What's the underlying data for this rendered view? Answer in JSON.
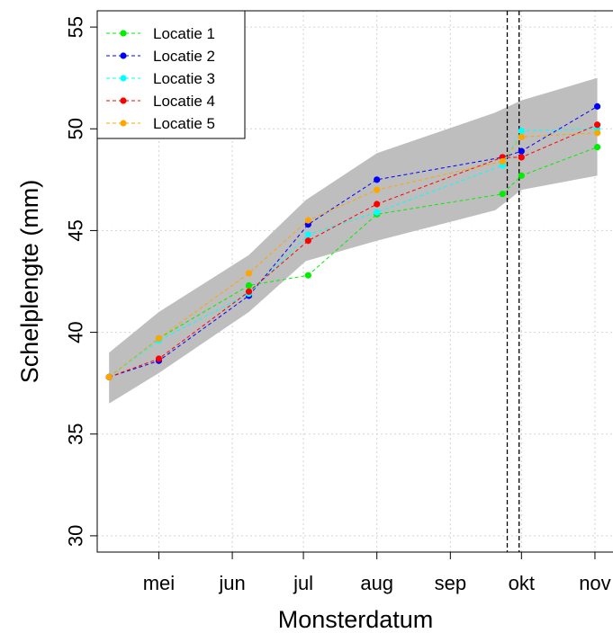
{
  "chart_data": {
    "type": "line",
    "xlabel": "Monsterdatum",
    "ylabel": "Schelplengte (mm)",
    "ylim": [
      29.2,
      55.8
    ],
    "xlim": [
      "2017-04-05",
      "2017-11-09"
    ],
    "y_ticks": [
      30,
      35,
      40,
      45,
      50,
      55
    ],
    "x_ticks": [
      {
        "label": "mei",
        "date": "2017-05-01"
      },
      {
        "label": "jun",
        "date": "2017-06-01"
      },
      {
        "label": "jul",
        "date": "2017-07-01"
      },
      {
        "label": "aug",
        "date": "2017-08-01"
      },
      {
        "label": "sep",
        "date": "2017-09-01"
      },
      {
        "label": "okt",
        "date": "2017-10-01"
      },
      {
        "label": "nov",
        "date": "2017-11-01"
      }
    ],
    "grid": true,
    "legend_position": "top-left",
    "vertical_reference_lines": [
      "2017-09-25",
      "2017-09-30"
    ],
    "band": {
      "color": "#bebebe",
      "x": [
        "2017-04-10",
        "2017-05-01",
        "2017-06-08",
        "2017-07-02",
        "2017-08-01",
        "2017-09-20",
        "2017-10-01",
        "2017-11-02"
      ],
      "upper": [
        39.0,
        41.0,
        43.8,
        46.5,
        48.8,
        50.8,
        51.4,
        52.5
      ],
      "lower": [
        36.5,
        38.0,
        41.0,
        43.5,
        44.5,
        46.0,
        47.0,
        47.7
      ]
    },
    "series": [
      {
        "name": "Locatie 1",
        "color": "#00ee00",
        "x": [
          "2017-04-10",
          "2017-05-01",
          "2017-06-08",
          "2017-07-03",
          "2017-08-01",
          "2017-09-23",
          "2017-10-01",
          "2017-11-02"
        ],
        "values": [
          37.8,
          39.7,
          42.3,
          42.8,
          45.8,
          46.8,
          47.7,
          49.1
        ]
      },
      {
        "name": "Locatie 2",
        "color": "#0000ff",
        "x": [
          "2017-04-10",
          "2017-05-01",
          "2017-06-08",
          "2017-07-03",
          "2017-08-01",
          "2017-09-23",
          "2017-10-01",
          "2017-11-02"
        ],
        "values": [
          37.8,
          38.6,
          41.8,
          45.3,
          47.5,
          48.6,
          48.9,
          51.1
        ]
      },
      {
        "name": "Locatie 3",
        "color": "#00ffff",
        "x": [
          "2017-04-10",
          "2017-05-01",
          "2017-06-08",
          "2017-07-03",
          "2017-08-01",
          "2017-09-23",
          "2017-10-01",
          "2017-11-02"
        ],
        "values": [
          37.8,
          39.6,
          41.9,
          44.8,
          45.9,
          48.2,
          49.9,
          50.0
        ]
      },
      {
        "name": "Locatie 4",
        "color": "#ff0000",
        "x": [
          "2017-04-10",
          "2017-05-01",
          "2017-06-08",
          "2017-07-03",
          "2017-08-01",
          "2017-09-23",
          "2017-10-01",
          "2017-11-02"
        ],
        "values": [
          37.8,
          38.7,
          42.0,
          44.5,
          46.3,
          48.6,
          48.6,
          50.2
        ]
      },
      {
        "name": "Locatie 5",
        "color": "#ffa500",
        "x": [
          "2017-04-10",
          "2017-05-01",
          "2017-06-08",
          "2017-07-03",
          "2017-08-01",
          "2017-09-23",
          "2017-10-01",
          "2017-11-02"
        ],
        "values": [
          37.8,
          39.7,
          42.9,
          45.5,
          47.0,
          48.4,
          49.6,
          49.8
        ]
      }
    ]
  }
}
